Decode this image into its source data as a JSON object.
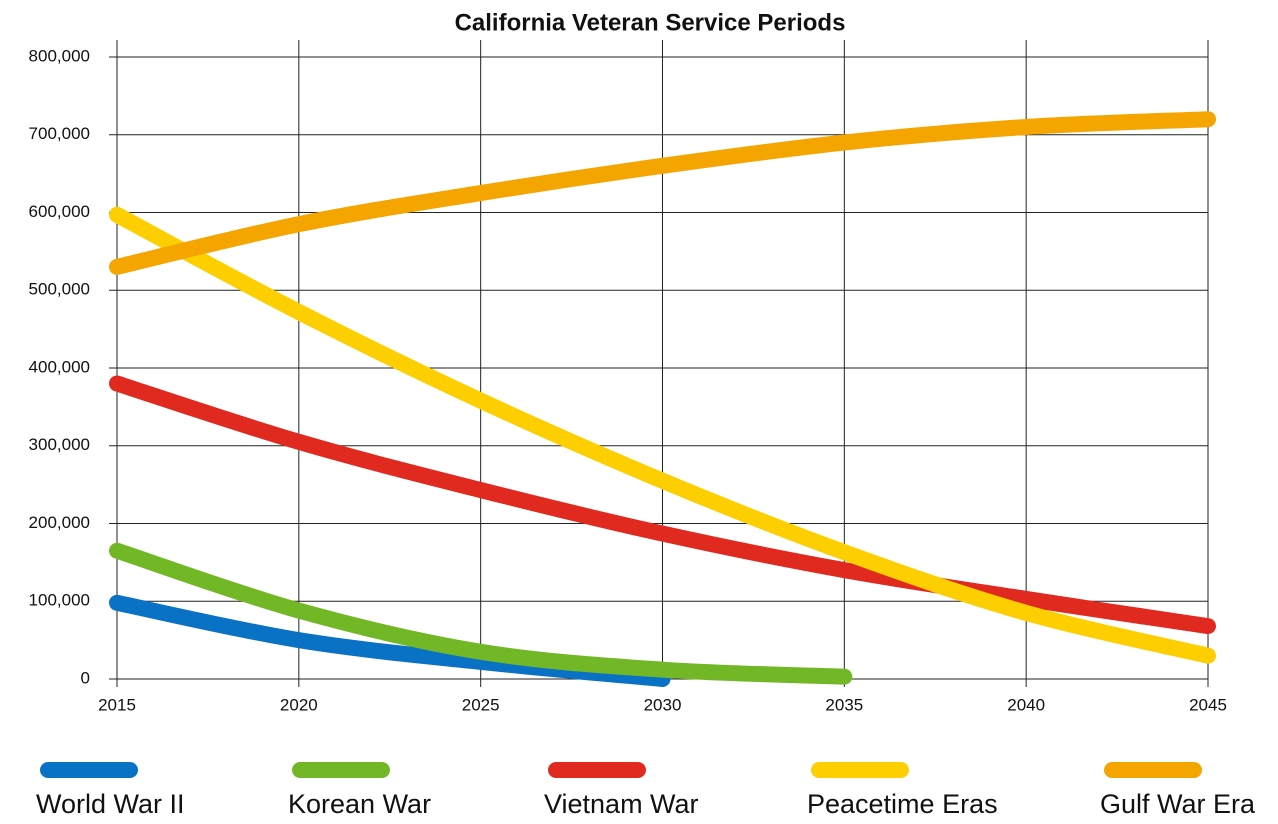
{
  "chart_data": {
    "type": "line",
    "title": "California Veteran Service Periods",
    "x": [
      2015,
      2020,
      2025,
      2030,
      2035,
      2040,
      2045
    ],
    "xlim": [
      2015,
      2045
    ],
    "xticks": [
      2015,
      2020,
      2025,
      2030,
      2035,
      2040,
      2045
    ],
    "ylim": [
      0,
      800000
    ],
    "yticks": [
      0,
      {
        "value": 100000,
        "label": "100,000"
      },
      {
        "value": 200000,
        "label": "200,000"
      },
      {
        "value": 300000,
        "label": "300,000"
      },
      {
        "value": 400000,
        "label": "400,000"
      },
      {
        "value": 500000,
        "label": "500,000"
      },
      {
        "value": 600000,
        "label": "600,000"
      },
      {
        "value": 700000,
        "label": "700,000"
      },
      {
        "value": 800000,
        "label": "800,000"
      }
    ],
    "grid": true,
    "legend": "bottom",
    "series": [
      {
        "name": "World War II",
        "color": "#0a72c4",
        "values": [
          98000,
          50000,
          22000,
          0,
          null,
          null,
          null
        ]
      },
      {
        "name": "Korean War",
        "color": "#72b826",
        "values": [
          165000,
          88000,
          35000,
          12000,
          3000,
          null,
          null
        ]
      },
      {
        "name": "Vietnam War",
        "color": "#e12a1f",
        "values": [
          380000,
          305000,
          243000,
          187000,
          140000,
          103000,
          68000
        ]
      },
      {
        "name": "Peacetime Eras",
        "color": "#fecf00",
        "values": [
          597000,
          472000,
          358000,
          255000,
          163000,
          85000,
          30000
        ]
      },
      {
        "name": "Gulf War Era",
        "color": "#f4a500",
        "values": [
          530000,
          585000,
          625000,
          660000,
          690000,
          710000,
          720000
        ]
      }
    ]
  }
}
